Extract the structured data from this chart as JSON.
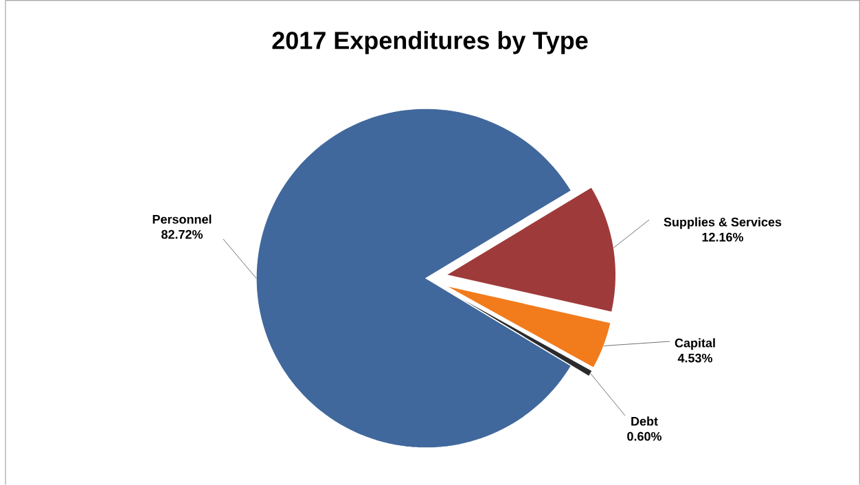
{
  "chart_data": {
    "type": "pie",
    "title": "2017 Expenditures by Type",
    "categories": [
      "Personnel",
      "Supplies & Services",
      "Capital",
      "Debt"
    ],
    "values": [
      82.72,
      12.16,
      4.53,
      0.6
    ],
    "value_labels": [
      "82.72%",
      "12.16%",
      "4.53%",
      "0.60%"
    ],
    "colors": [
      "#41689c",
      "#9e3b3a",
      "#f27b1c",
      "#2b2b2b"
    ]
  }
}
